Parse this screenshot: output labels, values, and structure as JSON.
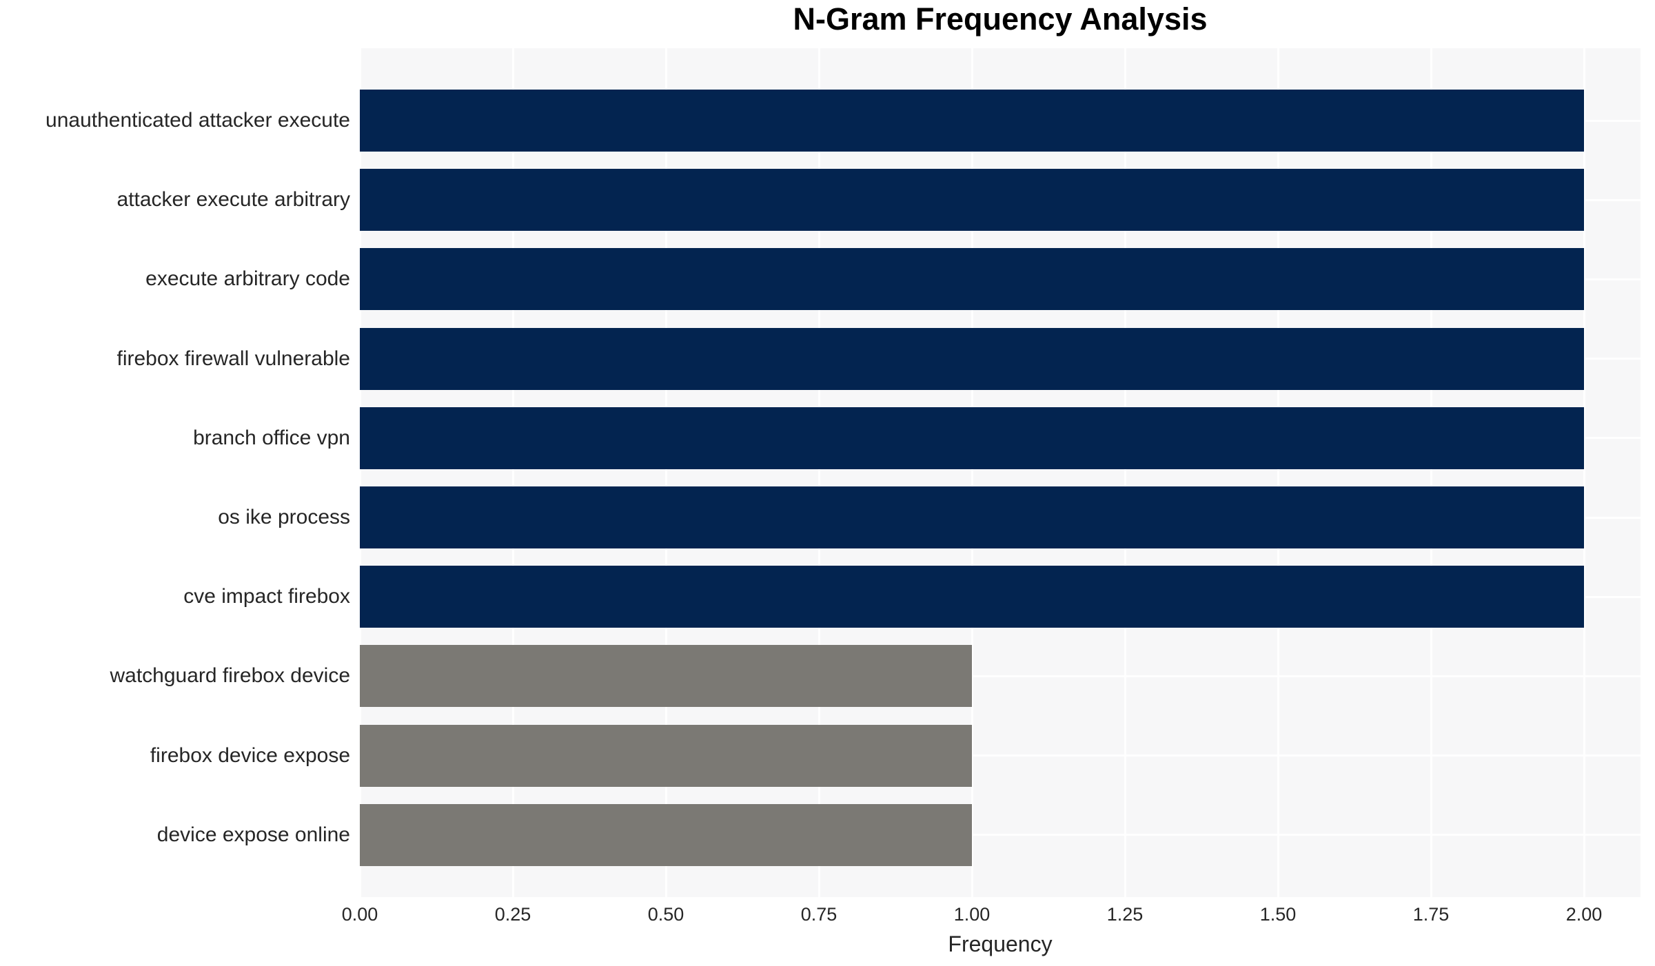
{
  "chart_data": {
    "type": "bar",
    "orientation": "horizontal",
    "title": "N-Gram Frequency Analysis",
    "xlabel": "Frequency",
    "ylabel": "",
    "categories": [
      "unauthenticated attacker execute",
      "attacker execute arbitrary",
      "execute arbitrary code",
      "firebox firewall vulnerable",
      "branch office vpn",
      "os ike process",
      "cve impact firebox",
      "watchguard firebox device",
      "firebox device expose",
      "device expose online"
    ],
    "values": [
      2,
      2,
      2,
      2,
      2,
      2,
      2,
      1,
      1,
      1
    ],
    "bar_colors": [
      "#032450",
      "#032450",
      "#032450",
      "#032450",
      "#032450",
      "#032450",
      "#032450",
      "#7b7974",
      "#7b7974",
      "#7b7974"
    ],
    "xticks": [
      "0.00",
      "0.25",
      "0.50",
      "0.75",
      "1.00",
      "1.25",
      "1.50",
      "1.75",
      "2.00"
    ],
    "xtick_values": [
      0,
      0.25,
      0.5,
      0.75,
      1.0,
      1.25,
      1.5,
      1.75,
      2.0
    ],
    "xlim": [
      0,
      2.09
    ],
    "grid": "on",
    "colors": {
      "navy_bar": "#032450",
      "gray_bar": "#7b7974",
      "plot_background": "#f7f7f8",
      "figure_background": "#ffffff",
      "gridline": "#ffffff",
      "tick_text": "#262626",
      "title_text": "#000000"
    }
  }
}
